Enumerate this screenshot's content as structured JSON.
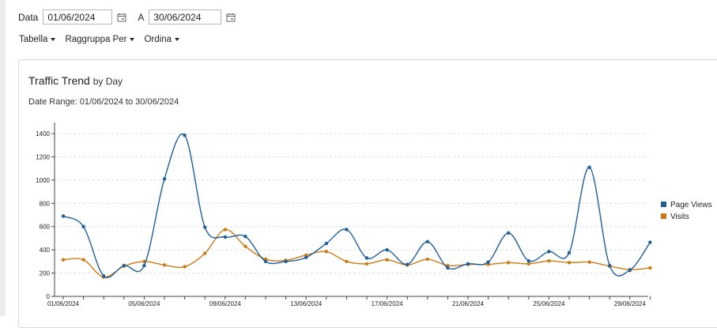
{
  "filters": {
    "from_label": "Data",
    "from_value": "01/06/2024",
    "to_label": "A",
    "to_value": "30/06/2024"
  },
  "menus": [
    {
      "label": "Tabella"
    },
    {
      "label": "Raggruppa Per"
    },
    {
      "label": "Ordina"
    }
  ],
  "card": {
    "title": "Traffic Trend",
    "title_sub": "by Day",
    "range": "Date Range: 01/06/2024 to 30/06/2024"
  },
  "colors": {
    "page_views": "#1f5f99",
    "visits": "#cc7a16"
  },
  "chart_data": {
    "type": "line",
    "title": "",
    "xlabel": "",
    "ylabel": "",
    "ylim": [
      0,
      1400
    ],
    "yticks": [
      0,
      200,
      400,
      600,
      800,
      1000,
      1200,
      1400
    ],
    "grid": true,
    "legend": "right",
    "x": [
      "01/06/2024",
      "02/06/2024",
      "03/06/2024",
      "04/06/2024",
      "05/06/2024",
      "06/06/2024",
      "07/06/2024",
      "08/06/2024",
      "09/06/2024",
      "10/06/2024",
      "11/06/2024",
      "12/06/2024",
      "13/06/2024",
      "14/06/2024",
      "15/06/2024",
      "16/06/2024",
      "17/06/2024",
      "18/06/2024",
      "19/06/2024",
      "20/06/2024",
      "21/06/2024",
      "22/06/2024",
      "23/06/2024",
      "24/06/2024",
      "25/06/2024",
      "26/06/2024",
      "27/06/2024",
      "28/06/2024",
      "29/06/2024",
      "30/06/2024"
    ],
    "xtick_labels": [
      "01/06/2024",
      "05/06/2024",
      "09/06/2024",
      "13/06/2024",
      "17/06/2024",
      "21/06/2024",
      "25/06/2024",
      "29/06/2024"
    ],
    "series": [
      {
        "name": "Page Views",
        "values": [
          690,
          600,
          175,
          265,
          265,
          1010,
          1385,
          595,
          510,
          515,
          300,
          300,
          335,
          455,
          575,
          330,
          400,
          275,
          470,
          245,
          280,
          295,
          545,
          305,
          385,
          375,
          1110,
          265,
          225,
          465
        ]
      },
      {
        "name": "Visits",
        "values": [
          315,
          315,
          165,
          260,
          300,
          270,
          255,
          370,
          575,
          430,
          320,
          310,
          355,
          385,
          300,
          280,
          315,
          270,
          320,
          265,
          275,
          275,
          290,
          280,
          305,
          290,
          295,
          260,
          230,
          245
        ]
      }
    ]
  }
}
